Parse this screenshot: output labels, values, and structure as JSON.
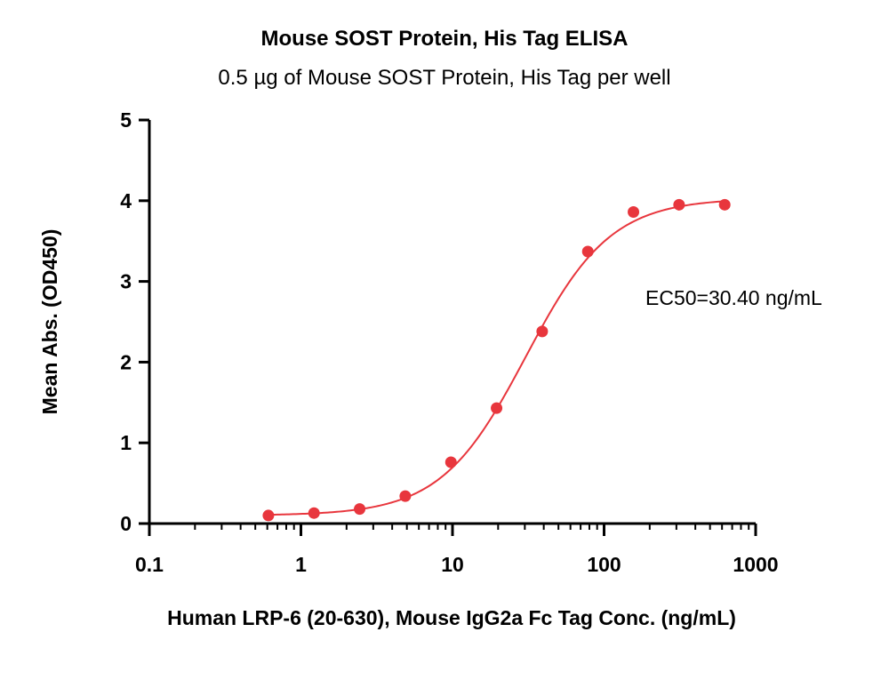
{
  "chart_data": {
    "type": "scatter",
    "title": "Mouse SOST Protein, His Tag ELISA",
    "subtitle": "0.5 µg of Mouse SOST Protein, His Tag per well",
    "xlabel": "Human LRP-6 (20-630), Mouse IgG2a Fc Tag Conc. (ng/mL)",
    "ylabel": "Mean Abs. (OD450)",
    "x_scale": "log",
    "xlim": [
      0.1,
      1000
    ],
    "ylim": [
      0,
      5
    ],
    "x_ticks": [
      "0.1",
      "1",
      "10",
      "100",
      "1000"
    ],
    "y_ticks": [
      "0",
      "1",
      "2",
      "3",
      "4",
      "5"
    ],
    "grid": false,
    "series": [
      {
        "color": "#e8363d",
        "x": [
          0.61,
          1.22,
          2.44,
          4.88,
          9.77,
          19.53,
          39.06,
          78.13,
          156.25,
          312.5,
          625
        ],
        "y": [
          0.1,
          0.13,
          0.18,
          0.34,
          0.76,
          1.43,
          2.38,
          3.37,
          3.86,
          3.95,
          3.95
        ]
      }
    ],
    "fit": {
      "model": "4PL",
      "bottom": 0.1,
      "top": 4.03,
      "ec50": 30.4,
      "hill": 1.55
    },
    "annotation": "EC50=30.40 ng/mL"
  }
}
